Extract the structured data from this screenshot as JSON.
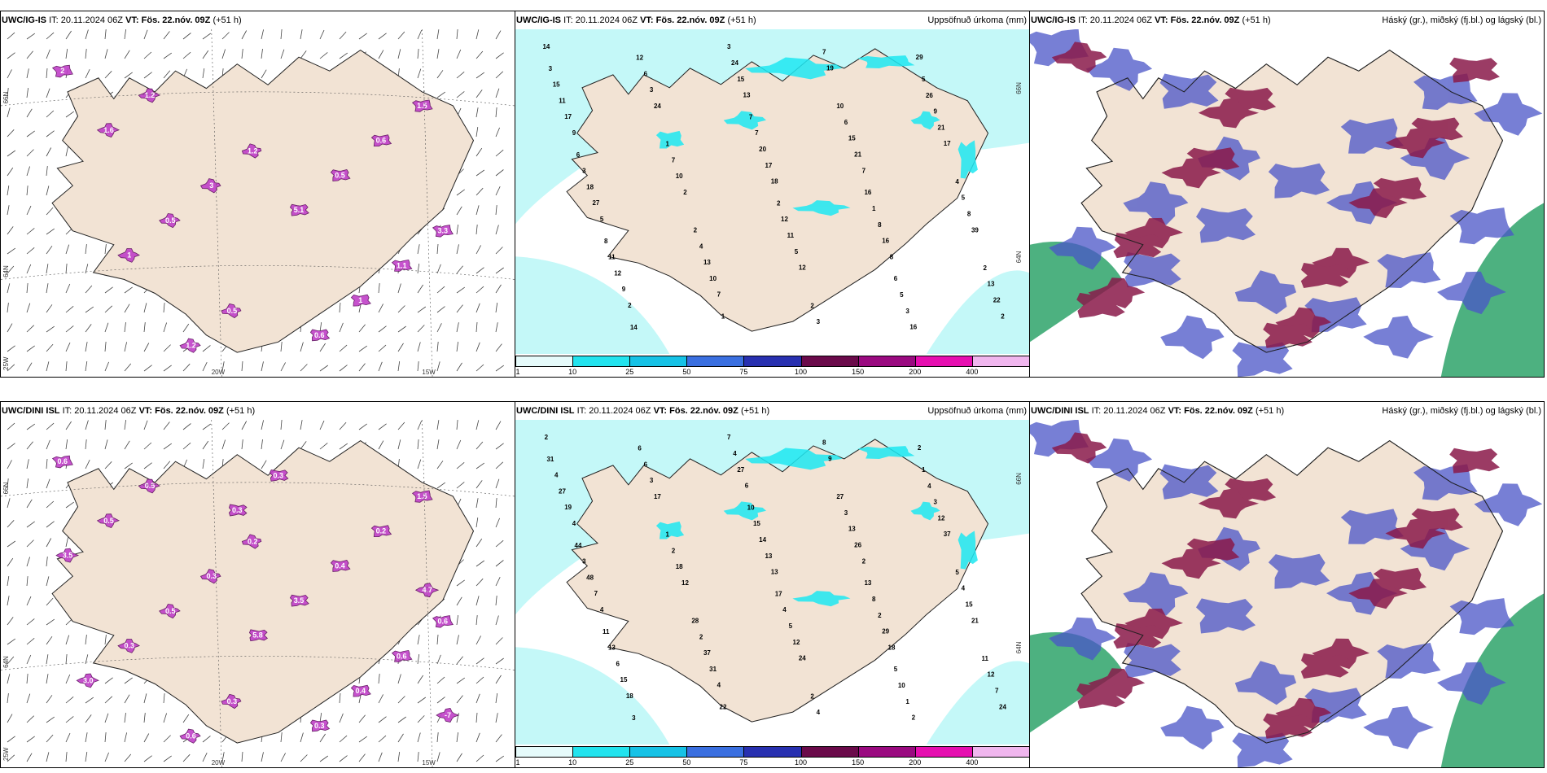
{
  "panels": [
    {
      "model": "UWC/IG-IS",
      "it_label": "IT:",
      "it_value": "20.11.2024 06Z",
      "vt_label": "VT:",
      "vt_value": "Fös. 22.nóv. 09Z",
      "lead": "(+51 h)",
      "right_title": "",
      "type": "wind",
      "axis_labels": [
        "66N",
        "64N",
        "25W",
        "20W",
        "15W"
      ],
      "value_labels": [
        "2",
        "1.2",
        "3.3",
        "0.5",
        "1.5",
        "3",
        "1.1",
        "1.2",
        "0.6",
        "0.5",
        "1",
        "1.2",
        "0.5",
        "1",
        "0.6",
        "1.6",
        "5.1"
      ]
    },
    {
      "model": "UWC/IG-IS",
      "it_label": "IT:",
      "it_value": "20.11.2024 06Z",
      "vt_label": "VT:",
      "vt_value": "Fös. 22.nóv. 09Z",
      "lead": "(+51 h)",
      "right_title": "Uppsöfnuð úrkoma (mm)",
      "type": "precip",
      "axis_labels": [
        "66N",
        "64N"
      ],
      "value_labels": [
        "14",
        "7",
        "7",
        "9",
        "8",
        "13",
        "5",
        "29",
        "18",
        "2",
        "17",
        "12",
        "24",
        "39",
        "19",
        "2",
        "2",
        "21",
        "10",
        "17",
        "16",
        "15",
        "27",
        "16",
        "17",
        "9",
        "21",
        "5",
        "3",
        "8",
        "7",
        "10",
        "22",
        "15",
        "13",
        "11",
        "8",
        "24",
        "18",
        "3",
        "20",
        "12",
        "9",
        "11",
        "6",
        "5",
        "3",
        "7",
        "13",
        "6",
        "4",
        "15",
        "1",
        "3",
        "3",
        "5",
        "7",
        "11",
        "26",
        "12",
        "12",
        "4",
        "2",
        "1",
        "2",
        "10",
        "2",
        "3",
        "16",
        "1",
        "6",
        "6",
        "7",
        "8",
        "5",
        "2",
        "14"
      ],
      "colorbar": {
        "ticks": [
          "1",
          "10",
          "25",
          "50",
          "75",
          "100",
          "150",
          "200",
          "400"
        ],
        "colors": [
          "#e6fbfb",
          "#22e3ee",
          "#16c2e6",
          "#3a6fe0",
          "#2830b0",
          "#6a0a4a",
          "#9a0a80",
          "#e60fb0",
          "#f0b6ee"
        ]
      }
    },
    {
      "model": "UWC/IG-IS",
      "it_label": "IT:",
      "it_value": "20.11.2024 06Z",
      "vt_label": "VT:",
      "vt_value": "Fös. 22.nóv. 09Z",
      "lead": "(+51 h)",
      "right_title": "Háský (gr.), miðský (fj.bl.) og lágský (bl.)",
      "type": "cloud"
    },
    {
      "model": "UWC/DINI ISL",
      "it_label": "IT:",
      "it_value": "20.11.2024 06Z",
      "vt_label": "VT:",
      "vt_value": "Fös. 22.nóv. 09Z",
      "lead": "(+51 h)",
      "right_title": "",
      "type": "wind",
      "axis_labels": [
        "66N",
        "64N",
        "25W",
        "20W",
        "15W"
      ],
      "value_labels": [
        "0.6",
        "0.2",
        "0.6",
        "0.3",
        "1.5",
        "0.3",
        "0.6",
        "0.6",
        "0.2",
        "0.5",
        "0.4",
        "0.5",
        "0.4",
        "0.3",
        "0.3",
        "0.5",
        "3.5",
        "3.0",
        "0.3",
        "3.5",
        "5.8",
        "-7",
        "0.3",
        "4.7"
      ]
    },
    {
      "model": "UWC/DINI ISL",
      "it_label": "IT:",
      "it_value": "20.11.2024 06Z",
      "vt_label": "VT:",
      "vt_value": "Fös. 22.nóv. 09Z",
      "lead": "(+51 h)",
      "right_title": "Uppsöfnuð úrkoma (mm)",
      "type": "precip",
      "axis_labels": [
        "66N",
        "64N"
      ],
      "value_labels": [
        "2",
        "2",
        "4",
        "4",
        "18",
        "6",
        "4",
        "2",
        "13",
        "18",
        "37",
        "24",
        "17",
        "21",
        "9",
        "12",
        "24",
        "26",
        "31",
        "19",
        "29",
        "27",
        "7",
        "2",
        "13",
        "15",
        "12",
        "12",
        "3",
        "15",
        "8",
        "18",
        "7",
        "13",
        "37",
        "27",
        "2",
        "4",
        "48",
        "1",
        "14",
        "6",
        "3",
        "5",
        "6",
        "4",
        "4",
        "2",
        "12",
        "3",
        "2",
        "4",
        "8",
        "7",
        "3",
        "10",
        "15",
        "13",
        "4",
        "4",
        "6",
        "5",
        "2",
        "1",
        "11",
        "27",
        "28",
        "31",
        "13",
        "22",
        "44",
        "5",
        "10",
        "11",
        "1",
        "17",
        "3"
      ],
      "colorbar": {
        "ticks": [
          "1",
          "10",
          "25",
          "50",
          "75",
          "100",
          "150",
          "200",
          "400"
        ],
        "colors": [
          "#e6fbfb",
          "#22e3ee",
          "#16c2e6",
          "#3a6fe0",
          "#2830b0",
          "#6a0a4a",
          "#9a0a80",
          "#e60fb0",
          "#f0b6ee"
        ]
      }
    },
    {
      "model": "UWC/DINI ISL",
      "it_label": "IT:",
      "it_value": "20.11.2024 06Z",
      "vt_label": "VT:",
      "vt_value": "Fös. 22.nóv. 09Z",
      "lead": "(+51 h)",
      "right_title": "Háský (gr.), miðský (fj.bl.) og lágský (bl.)",
      "type": "cloud"
    }
  ],
  "colors": {
    "land": "#f2e3d4",
    "sea": "#ffffff",
    "precip_light": "#c4f8f8",
    "precip_mid": "#1ee8f2",
    "high_cloud": "#2ea36a",
    "mid_cloud": "#8a1a4a",
    "low_cloud": "#4a55c8",
    "ice_accretion": "#c040c8"
  }
}
